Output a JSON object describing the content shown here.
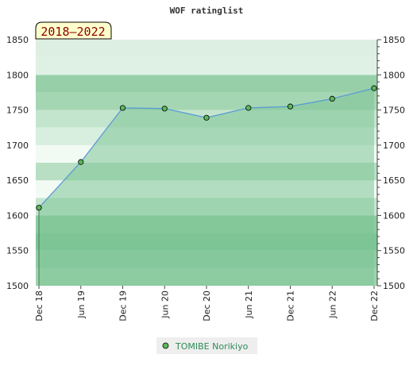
{
  "chart_data": {
    "type": "area",
    "title": "WOF ratinglist",
    "period_label": "2018–2022",
    "xlabel": "",
    "ylabel": "",
    "x": [
      "Dec 18",
      "Jun 19",
      "Dec 19",
      "Jun 20",
      "Dec 20",
      "Jun 21",
      "Dec 21",
      "Jun 22",
      "Dec 22"
    ],
    "series": [
      {
        "name": "TOMIBE Norikiyo",
        "values": [
          1611,
          1676,
          1753,
          1752,
          1739,
          1753,
          1755,
          1766,
          1781
        ]
      }
    ],
    "ylim": [
      1500,
      1850
    ],
    "yticks": [
      1500,
      1550,
      1600,
      1650,
      1700,
      1750,
      1800,
      1850
    ],
    "grid": "horizontal bands",
    "legend_position": "bottom",
    "colors": {
      "area_fill": "#7dc595",
      "line": "#5b9bd5",
      "marker": "#5cb85c",
      "legend_text": "#2e8b57",
      "period_label_bg": "#ffffcc",
      "period_label_text": "#8b0000"
    }
  }
}
